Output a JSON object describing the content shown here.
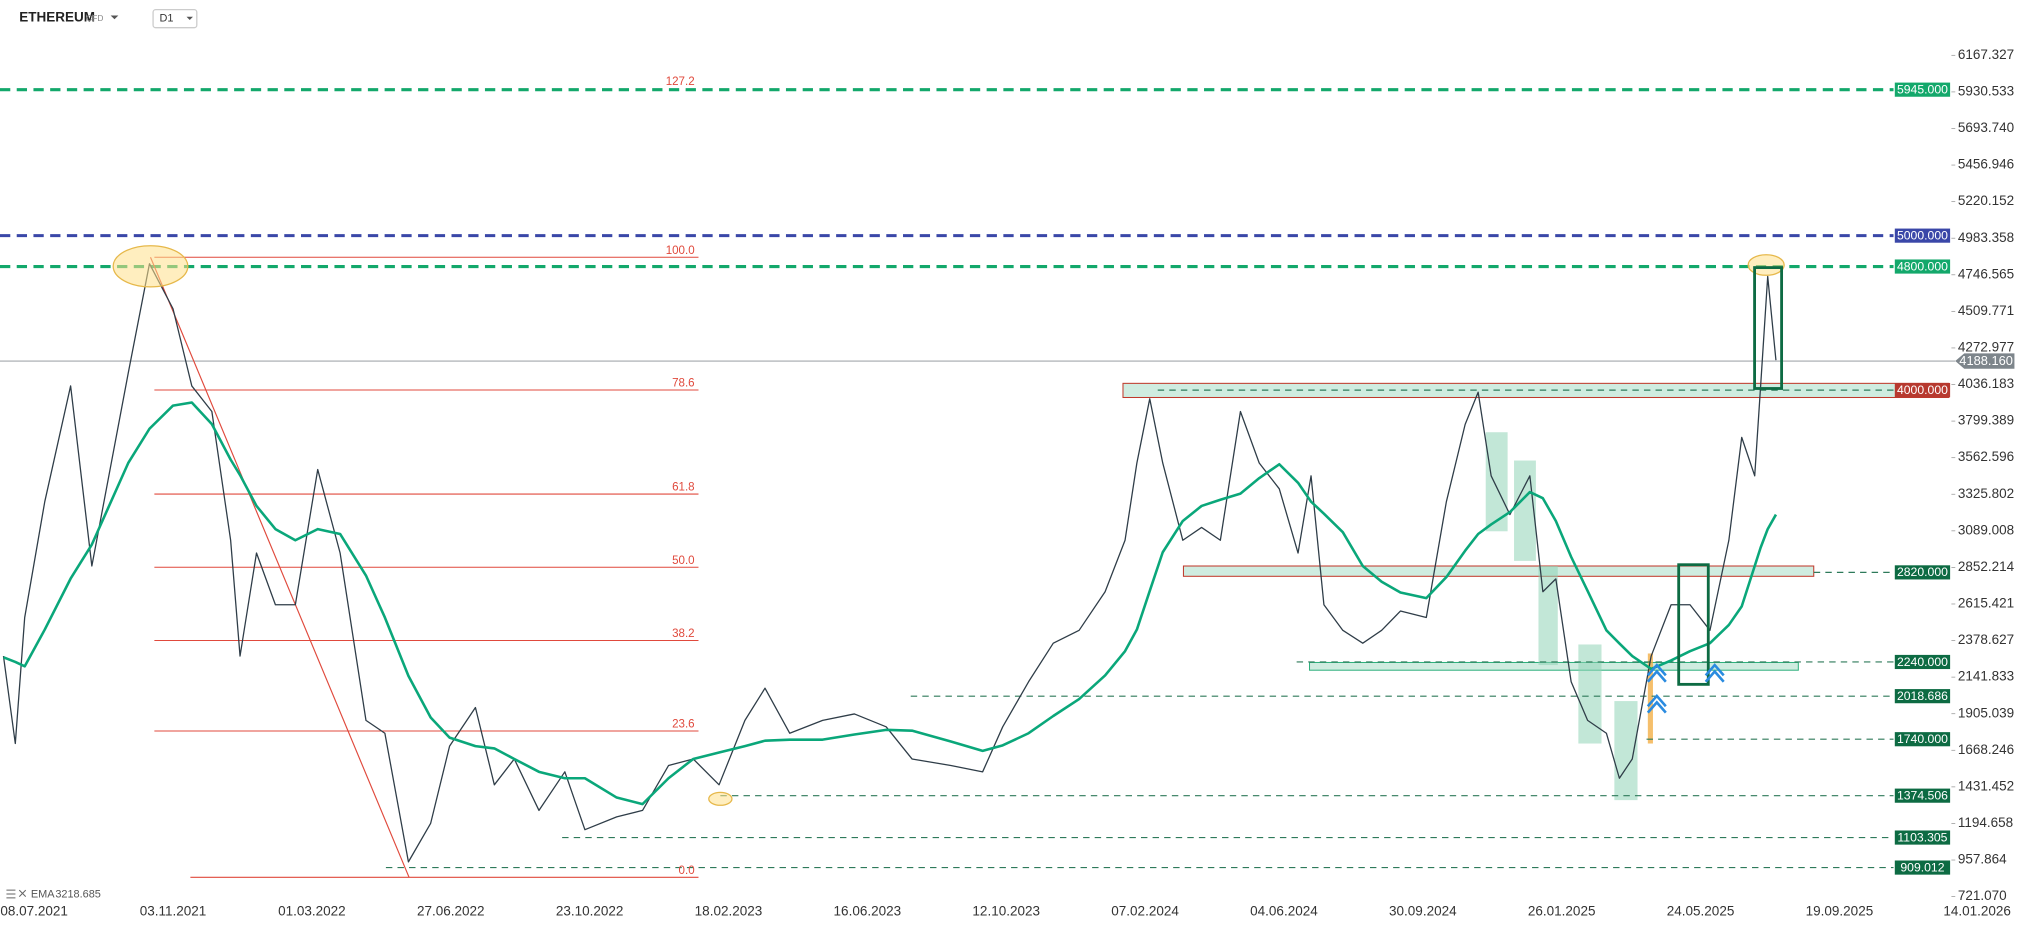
{
  "chart_data": {
    "type": "line",
    "title": "ETHEREUM",
    "subtitle": "CFD",
    "timeframe": "D1",
    "x": [
      "12.06.2021",
      "22.06.2021",
      "30.06.2021",
      "17.07.2021",
      "08.08.2021",
      "26.08.2021",
      "26.09.2021",
      "14.10.2021",
      "03.11.2021",
      "19.11.2021",
      "06.12.2021",
      "22.12.2021",
      "30.12.2021",
      "13.01.2022",
      "29.01.2022",
      "15.02.2022",
      "06.03.2022",
      "25.03.2022",
      "16.04.2022",
      "02.05.2022",
      "22.05.2022",
      "10.06.2022",
      "26.06.2022",
      "18.07.2022",
      "03.08.2022",
      "20.08.2022",
      "10.09.2022",
      "02.10.2022",
      "19.10.2022",
      "15.11.2022",
      "07.12.2022",
      "29.12.2022",
      "19.01.2023",
      "10.02.2023",
      "04.03.2023",
      "21.03.2023",
      "11.04.2023",
      "09.05.2023",
      "05.06.2023",
      "02.07.2023",
      "24.07.2023",
      "26.08.2023",
      "22.09.2023",
      "09.10.2023",
      "31.10.2023",
      "21.11.2023",
      "13.12.2023",
      "04.01.2024",
      "21.01.2024",
      "31.01.2024",
      "11.02.2024",
      "22.02.2024",
      "10.03.2024",
      "26.03.2024",
      "11.04.2024",
      "28.04.2024",
      "14.05.2024",
      "31.05.2024",
      "16.06.2024",
      "27.06.2024",
      "08.07.2024",
      "24.07.2024",
      "10.08.2024",
      "26.08.2024",
      "11.09.2024",
      "03.10.2024",
      "20.10.2024",
      "05.11.2024",
      "16.11.2024",
      "27.11.2024",
      "13.12.2024",
      "30.12.2024",
      "10.01.2025",
      "21.01.2025",
      "03.02.2025",
      "17.02.2025",
      "05.03.2025",
      "16.03.2025",
      "27.03.2025",
      "12.04.2025",
      "29.04.2025",
      "15.05.2025",
      "01.06.2025",
      "17.06.2025",
      "28.06.2025",
      "09.07.2025",
      "14.07.2025",
      "20.07.2025",
      "27.07.2025"
    ],
    "series": [
      {
        "color": "#2f3d48",
        "values": [
          2278,
          1712,
          2528,
          3278,
          4027,
          2861,
          4110,
          4818,
          4527,
          4027,
          3861,
          3028,
          2278,
          2945,
          2611,
          2611,
          3486,
          2945,
          1862,
          1779,
          946,
          1196,
          1695,
          1945,
          1445,
          1612,
          1279,
          1529,
          1154,
          1237,
          1279,
          1570,
          1612,
          1445,
          1862,
          2070,
          1779,
          1862,
          1904,
          1820,
          1612,
          1570,
          1529,
          1820,
          2112,
          2362,
          2445,
          2695,
          3028,
          3528,
          3944,
          3528,
          3028,
          3111,
          3028,
          3861,
          3528,
          3361,
          2945,
          3445,
          2611,
          2445,
          2362,
          2445,
          2570,
          2528,
          3278,
          3778,
          3986,
          3445,
          3194,
          3445,
          2695,
          2778,
          2112,
          1862,
          1779,
          1487,
          1612,
          2278,
          2611,
          2611,
          2445,
          3028,
          3694,
          3445,
          4027,
          4736,
          4194
        ]
      },
      {
        "name": "EMA",
        "color": "#0aa77a",
        "last_value": 3218.685,
        "values": [
          2270,
          2240,
          2212,
          2450,
          2780,
          3000,
          3528,
          3750,
          3900,
          3920,
          3780,
          3550,
          3450,
          3250,
          3100,
          3028,
          3100,
          3069,
          2800,
          2528,
          2150,
          1880,
          1750,
          1695,
          1680,
          1612,
          1529,
          1487,
          1487,
          1362,
          1320,
          1487,
          1612,
          1654,
          1695,
          1730,
          1737,
          1737,
          1770,
          1800,
          1795,
          1725,
          1665,
          1700,
          1779,
          1890,
          2000,
          2153,
          2310,
          2450,
          2700,
          2950,
          3153,
          3250,
          3290,
          3330,
          3430,
          3520,
          3400,
          3278,
          3200,
          3080,
          2861,
          2760,
          2690,
          2653,
          2790,
          2960,
          3069,
          3130,
          3210,
          3340,
          3300,
          3153,
          2920,
          2700,
          2445,
          2360,
          2278,
          2195,
          2250,
          2310,
          2362,
          2480,
          2600,
          2861,
          2980,
          3100,
          3194
        ]
      }
    ],
    "xlim": [
      "09.06.2021",
      "14.01.2026"
    ],
    "xticks": [
      "08.07.2021",
      "03.11.2021",
      "01.03.2022",
      "27.06.2022",
      "23.10.2022",
      "18.02.2023",
      "16.06.2023",
      "12.10.2023",
      "07.02.2024",
      "04.06.2024",
      "30.09.2024",
      "26.01.2025",
      "24.05.2025",
      "19.09.2025",
      "14.01.2026"
    ],
    "ylim": [
      654.45,
      6275.59
    ],
    "yticks": [
      6167.327,
      5930.533,
      {
        "value": 5693.74,
        "label": "5693.740"
      },
      5456.946,
      5220.152,
      4983.358,
      4746.565,
      4509.771,
      4272.977,
      4036.183,
      3799.389,
      3562.596,
      3325.802,
      3089.008,
      2852.214,
      2615.421,
      2378.627,
      2141.833,
      1905.039,
      1668.246,
      1431.452,
      1194.658,
      957.864,
      {
        "value": 721.07,
        "label": "721.070"
      }
    ],
    "grid": false,
    "current_price": {
      "value": 4188.16,
      "label": "4188.160",
      "color": "#7d858b"
    },
    "levels": [
      {
        "value": 5945,
        "label": "5945.000",
        "color": "#13a86b",
        "style": "thick"
      },
      {
        "value": 5000,
        "label": "5000.000",
        "color": "#3a47a8",
        "style": "thick"
      },
      {
        "value": 4800,
        "label": "4800.000",
        "color": "#13a86b",
        "style": "thick"
      },
      {
        "value": 4000,
        "label": "4000.000",
        "color": "#b7392f",
        "style": "thin"
      },
      {
        "value": 2820,
        "label": "2820.000",
        "color": "#0d6b43",
        "style": "thin"
      },
      {
        "value": 2240,
        "label": "2240.000",
        "color": "#0d6b43",
        "style": "thin"
      },
      {
        "value": 2018.686,
        "color": "#0d6b43",
        "style": "thin"
      },
      {
        "value": 1740,
        "label": "1740.000",
        "color": "#0d6b43",
        "style": "thin"
      },
      {
        "value": 1374.506,
        "color": "#0d6b43",
        "style": "thin"
      },
      {
        "value": 1103.305,
        "color": "#0d6b43",
        "style": "thin"
      },
      {
        "value": 909.012,
        "color": "#0d6b43",
        "style": "thin"
      }
    ],
    "fibonacci": {
      "color": "#e0493c",
      "levels": [
        127.2,
        {
          "value": 100,
          "label": "100.0"
        },
        78.6,
        61.8,
        {
          "value": 50,
          "label": "50.0"
        },
        38.2,
        23.6,
        {
          "value": 0,
          "label": "0.0"
        }
      ],
      "prices": [
        5952,
        4860,
        4001,
        3327,
        2853,
        2379,
        1793,
        846
      ]
    }
  }
}
